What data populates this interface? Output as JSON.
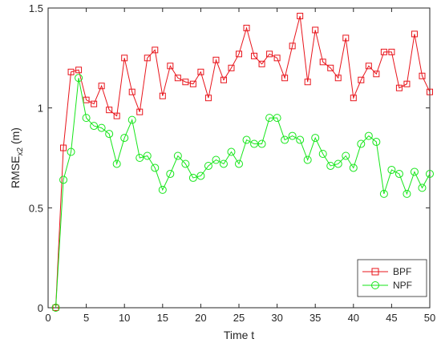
{
  "chart_data": {
    "type": "line",
    "title": "",
    "xlabel": "Time t",
    "ylabel_main": "RMSE",
    "ylabel_sub": "x2",
    "ylabel_unit": " (m)",
    "xlim": [
      0,
      50
    ],
    "ylim": [
      0,
      1.5
    ],
    "xticks": [
      0,
      5,
      10,
      15,
      20,
      25,
      30,
      35,
      40,
      45,
      50
    ],
    "yticks": [
      0,
      0.5,
      1,
      1.5
    ],
    "ytick_labels": [
      "0",
      "0.5",
      "1",
      "1.5"
    ],
    "grid": false,
    "legend_position": "bottom-right",
    "x": [
      1,
      2,
      3,
      4,
      5,
      6,
      7,
      8,
      9,
      10,
      11,
      12,
      13,
      14,
      15,
      16,
      17,
      18,
      19,
      20,
      21,
      22,
      23,
      24,
      25,
      26,
      27,
      28,
      29,
      30,
      31,
      32,
      33,
      34,
      35,
      36,
      37,
      38,
      39,
      40,
      41,
      42,
      43,
      44,
      45,
      46,
      47,
      48,
      49,
      50
    ],
    "series": [
      {
        "name": "BPF",
        "color": "#e8141b",
        "marker": "square",
        "values": [
          0,
          0.8,
          1.18,
          1.19,
          1.04,
          1.02,
          1.11,
          0.99,
          0.96,
          1.25,
          1.08,
          0.98,
          1.25,
          1.29,
          1.06,
          1.21,
          1.15,
          1.13,
          1.12,
          1.18,
          1.05,
          1.24,
          1.14,
          1.2,
          1.27,
          1.4,
          1.26,
          1.22,
          1.27,
          1.25,
          1.15,
          1.31,
          1.46,
          1.13,
          1.39,
          1.23,
          1.2,
          1.15,
          1.35,
          1.05,
          1.14,
          1.21,
          1.17,
          1.28,
          1.28,
          1.1,
          1.12,
          1.37,
          1.16,
          1.08
        ]
      },
      {
        "name": "NPF",
        "color": "#16e61a",
        "marker": "circle",
        "values": [
          0,
          0.64,
          0.78,
          1.15,
          0.95,
          0.91,
          0.9,
          0.87,
          0.72,
          0.85,
          0.94,
          0.75,
          0.76,
          0.7,
          0.59,
          0.67,
          0.76,
          0.72,
          0.65,
          0.66,
          0.71,
          0.74,
          0.72,
          0.78,
          0.72,
          0.84,
          0.82,
          0.82,
          0.95,
          0.95,
          0.84,
          0.86,
          0.84,
          0.74,
          0.85,
          0.77,
          0.71,
          0.72,
          0.76,
          0.7,
          0.82,
          0.86,
          0.83,
          0.57,
          0.69,
          0.67,
          0.57,
          0.68,
          0.6,
          0.67
        ]
      }
    ]
  }
}
